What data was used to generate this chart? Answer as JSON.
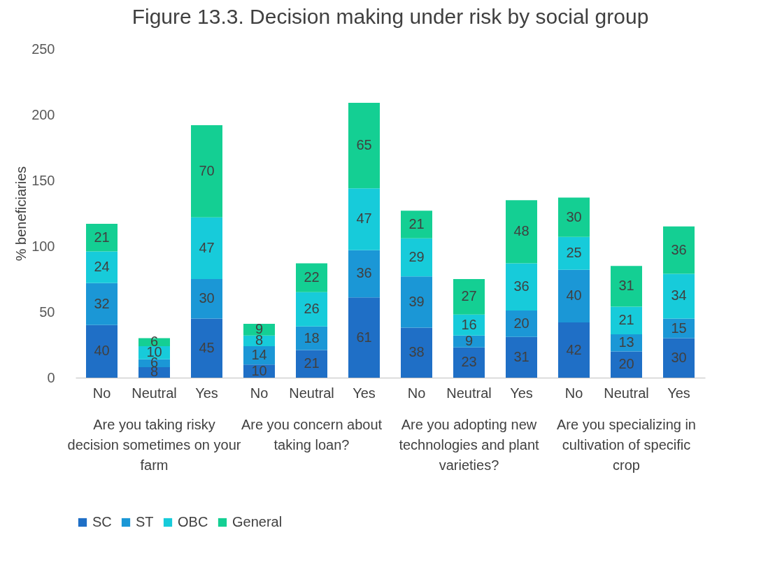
{
  "chart_data": {
    "type": "bar",
    "title": "Figure 13.3. Decision making under risk by social group",
    "ylabel": "% beneficiaries",
    "categories": [
      "No",
      "Neutral",
      "Yes",
      "No",
      "Neutral",
      "Yes",
      "No",
      "Neutral",
      "Yes",
      "No",
      "Neutral",
      "Yes"
    ],
    "series": [
      {
        "name": "SC",
        "color": "#1f6fc6",
        "values": [
          40,
          8,
          45,
          10,
          21,
          61,
          38,
          23,
          31,
          42,
          20,
          30
        ]
      },
      {
        "name": "ST",
        "color": "#1b97d6",
        "values": [
          32,
          6,
          30,
          14,
          18,
          36,
          39,
          9,
          20,
          40,
          13,
          15
        ]
      },
      {
        "name": "OBC",
        "color": "#17cbda",
        "values": [
          24,
          10,
          47,
          8,
          26,
          47,
          29,
          16,
          36,
          25,
          21,
          34
        ]
      },
      {
        "name": "General",
        "color": "#14cf93",
        "values": [
          21,
          6,
          70,
          9,
          22,
          65,
          21,
          27,
          48,
          30,
          31,
          36
        ]
      }
    ],
    "stacked": true,
    "ylim": [
      0,
      250
    ],
    "yticks": [
      0,
      50,
      100,
      150,
      200,
      250
    ],
    "grid": false,
    "legend": "bottom",
    "data_labels": true,
    "annotations": [
      "Are you taking risky decision sometimes on your farm",
      "Are you concern about taking loan?",
      "Are you adopting new technologies and plant varieties?",
      "Are you specializing in cultivation of specific crop"
    ]
  }
}
